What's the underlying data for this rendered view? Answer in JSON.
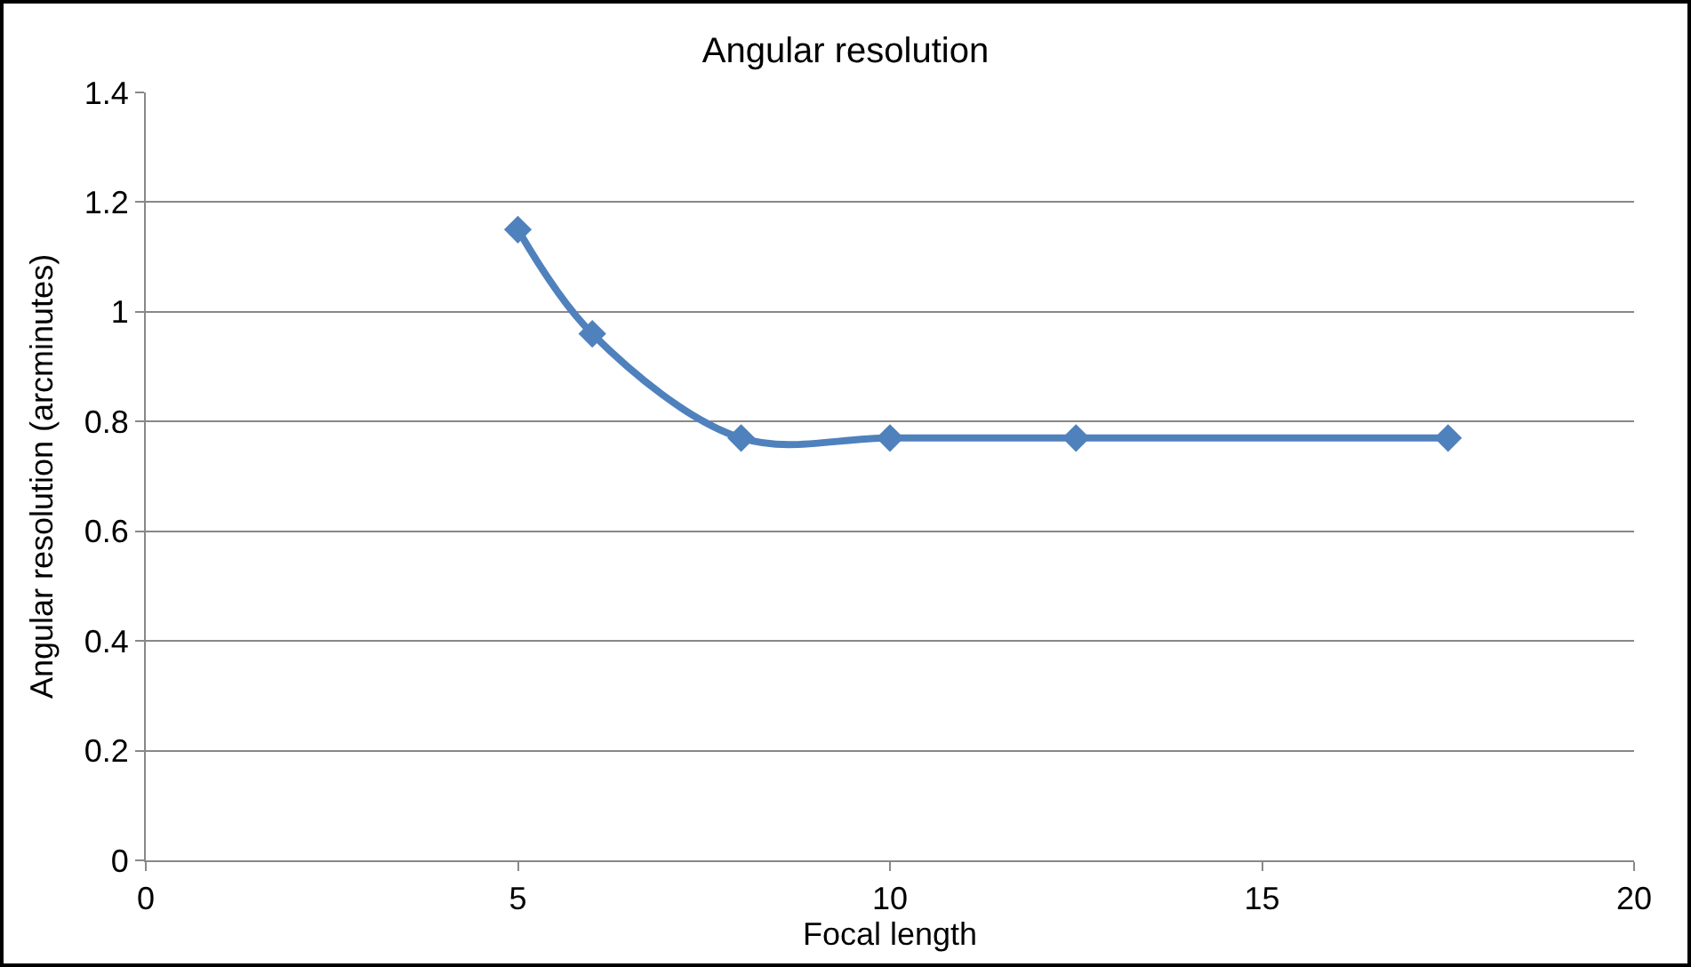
{
  "chart_data": {
    "type": "line",
    "title": "Angular resolution",
    "xlabel": "Focal length",
    "ylabel": "Angular resolution (arcminutes)",
    "x": [
      5,
      6,
      8,
      10,
      12.5,
      17.5
    ],
    "series": [
      {
        "color": "#4f81bd",
        "values": [
          1.15,
          0.96,
          0.77,
          0.77,
          0.77,
          0.77
        ]
      }
    ],
    "xlim": [
      0,
      20
    ],
    "xticks": [
      0,
      5,
      10,
      15,
      20
    ],
    "ylim": [
      0,
      1.4
    ],
    "yticks": [
      0,
      0.2,
      0.4,
      0.6,
      0.8,
      1,
      1.2,
      1.4
    ],
    "grid": "y",
    "legend": false,
    "marker": "diamond",
    "line_style": "solid"
  }
}
